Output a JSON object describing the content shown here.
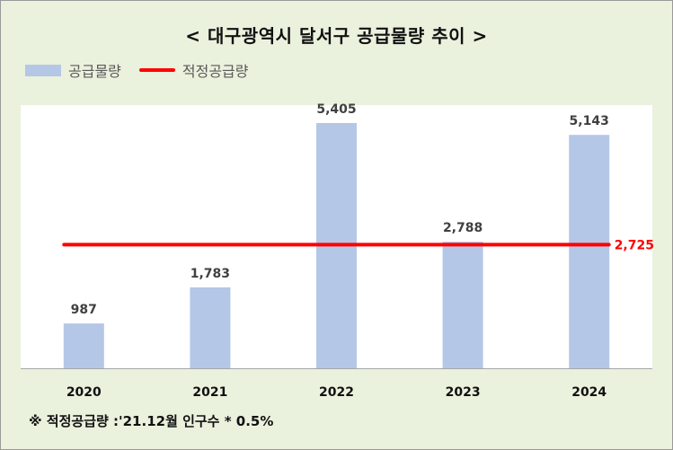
{
  "chart_data": {
    "type": "bar",
    "title": "< 대구광역시 달서구 공급물량 추이 >",
    "categories": [
      "2020",
      "2021",
      "2022",
      "2023",
      "2024"
    ],
    "series": [
      {
        "name": "공급물량",
        "type": "bar",
        "values": [
          987,
          1783,
          5405,
          2788,
          5143
        ],
        "value_labels": [
          "987",
          "1,783",
          "5,405",
          "2,788",
          "5,143"
        ],
        "color": "#b4c7e7"
      },
      {
        "name": "적정공급량",
        "type": "line",
        "value": 2725,
        "value_label": "2,725",
        "color": "#ff0000"
      }
    ],
    "ylim": [
      0,
      5800
    ],
    "grid": false,
    "legend_position": "top-left",
    "footnote": "※ 적정공급량 :'21.12월 인구수 * 0.5%"
  }
}
